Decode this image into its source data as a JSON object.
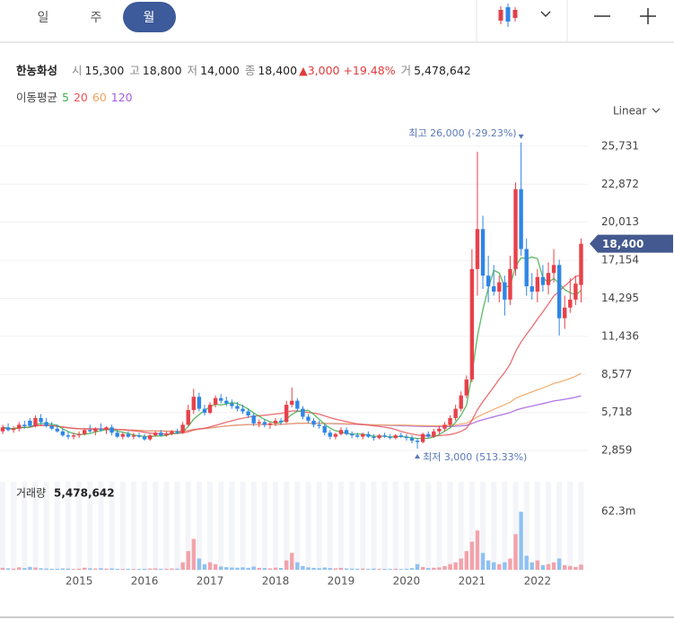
{
  "header": {
    "tabs": [
      "일",
      "주",
      "월"
    ],
    "selected_tab": 2,
    "name": "한농화성",
    "quote": [
      {
        "label": "시",
        "value": "15,300"
      },
      {
        "label": "고",
        "value": "18,800"
      },
      {
        "label": "저",
        "value": "14,000"
      },
      {
        "label": "종",
        "value": "18,400"
      }
    ],
    "change": "▲3,000 +19.48%",
    "volume": {
      "label": "거",
      "value": "5,478,642"
    },
    "scale": "Linear"
  },
  "chart_data": {
    "type": "candlestick",
    "ma": {
      "label": "이동평균",
      "periods": [
        5,
        20,
        60,
        120
      ],
      "colors": [
        "#3fae49",
        "#e8555a",
        "#f0a35c",
        "#a45ee0"
      ]
    },
    "up_color": "#e8414a",
    "down_color": "#2f86e6",
    "volume_up_color": "#f2a2aa",
    "volume_down_color": "#8fc1f2",
    "categories": [
      null,
      null,
      null,
      null,
      null,
      null,
      null,
      null,
      null,
      null,
      null,
      null,
      null,
      null,
      "2015",
      null,
      null,
      null,
      null,
      null,
      null,
      null,
      null,
      null,
      null,
      null,
      "2016",
      null,
      null,
      null,
      null,
      null,
      null,
      null,
      null,
      null,
      null,
      null,
      "2017",
      null,
      null,
      null,
      null,
      null,
      null,
      null,
      null,
      null,
      null,
      null,
      "2018",
      null,
      null,
      null,
      null,
      null,
      null,
      null,
      null,
      null,
      null,
      null,
      "2019",
      null,
      null,
      null,
      null,
      null,
      null,
      null,
      null,
      null,
      null,
      null,
      "2020",
      null,
      null,
      null,
      null,
      null,
      null,
      null,
      null,
      null,
      null,
      null,
      "2021",
      null,
      null,
      null,
      null,
      null,
      null,
      null,
      null,
      null,
      null,
      null,
      "2022",
      null,
      null,
      null,
      null,
      null,
      null,
      null,
      null
    ],
    "candles": [
      [
        4300,
        4800,
        4100,
        4600
      ],
      [
        4600,
        4900,
        4300,
        4400
      ],
      [
        4400,
        4700,
        4200,
        4500
      ],
      [
        4500,
        5000,
        4300,
        4800
      ],
      [
        4800,
        5100,
        4500,
        4700
      ],
      [
        5100,
        5300,
        4600,
        4700
      ],
      [
        4700,
        5500,
        4600,
        5300
      ],
      [
        5300,
        5600,
        4800,
        5000
      ],
      [
        5000,
        5300,
        4600,
        4700
      ],
      [
        4700,
        5000,
        4400,
        4500
      ],
      [
        4500,
        4800,
        4200,
        4300
      ],
      [
        4300,
        4500,
        3900,
        4000
      ],
      [
        4000,
        4300,
        3700,
        3900
      ],
      [
        3900,
        4200,
        3700,
        4000
      ],
      [
        4000,
        4300,
        3800,
        4100
      ],
      [
        4100,
        4500,
        4000,
        4400
      ],
      [
        4400,
        4800,
        4200,
        4300
      ],
      [
        4300,
        4600,
        4000,
        4500
      ],
      [
        4500,
        4900,
        4300,
        4400
      ],
      [
        4400,
        4700,
        4100,
        4600
      ],
      [
        4600,
        4800,
        4000,
        4200
      ],
      [
        4200,
        4400,
        3800,
        3900
      ],
      [
        3900,
        4200,
        3700,
        4100
      ],
      [
        4100,
        4300,
        3800,
        3900
      ],
      [
        3900,
        4200,
        3700,
        4000
      ],
      [
        4000,
        4200,
        3800,
        3900
      ],
      [
        3900,
        4100,
        3600,
        3700
      ],
      [
        3700,
        4100,
        3600,
        4000
      ],
      [
        4000,
        4300,
        3900,
        4200
      ],
      [
        4200,
        4400,
        3900,
        4000
      ],
      [
        4000,
        4300,
        3900,
        4100
      ],
      [
        4100,
        4400,
        4000,
        4300
      ],
      [
        4300,
        4500,
        4100,
        4200
      ],
      [
        4200,
        5000,
        4100,
        4800
      ],
      [
        4800,
        6300,
        4700,
        5900
      ],
      [
        5900,
        7500,
        5600,
        6900
      ],
      [
        6900,
        7200,
        5800,
        6000
      ],
      [
        6000,
        6300,
        5500,
        5700
      ],
      [
        5700,
        6500,
        5600,
        6300
      ],
      [
        6300,
        7000,
        6100,
        6800
      ],
      [
        6800,
        7100,
        6400,
        6600
      ],
      [
        6600,
        6900,
        6200,
        6400
      ],
      [
        6400,
        6700,
        6000,
        6200
      ],
      [
        6200,
        6500,
        5800,
        6000
      ],
      [
        6000,
        6300,
        5600,
        5800
      ],
      [
        5800,
        6000,
        5300,
        5500
      ],
      [
        5500,
        5700,
        4700,
        4900
      ],
      [
        4900,
        5200,
        4600,
        5000
      ],
      [
        5000,
        5200,
        4600,
        4800
      ],
      [
        4800,
        5000,
        4500,
        4900
      ],
      [
        4900,
        5300,
        4700,
        5100
      ],
      [
        5100,
        5300,
        4800,
        5000
      ],
      [
        5000,
        6600,
        4900,
        6300
      ],
      [
        6300,
        7600,
        6100,
        6600
      ],
      [
        6600,
        6800,
        5800,
        6000
      ],
      [
        6000,
        6200,
        5200,
        5400
      ],
      [
        5400,
        5600,
        4900,
        5100
      ],
      [
        5100,
        5300,
        4600,
        4800
      ],
      [
        4800,
        5100,
        4500,
        4700
      ],
      [
        4700,
        4900,
        4000,
        4200
      ],
      [
        4200,
        4400,
        3700,
        3900
      ],
      [
        3900,
        4200,
        3700,
        4100
      ],
      [
        4100,
        4600,
        4000,
        4400
      ],
      [
        4400,
        4600,
        4000,
        4100
      ],
      [
        4100,
        4300,
        3800,
        4000
      ],
      [
        4000,
        4200,
        3800,
        3900
      ],
      [
        3900,
        4200,
        3700,
        4100
      ],
      [
        4100,
        4300,
        3800,
        3900
      ],
      [
        3900,
        4100,
        3600,
        3800
      ],
      [
        3800,
        4100,
        3700,
        4000
      ],
      [
        4000,
        4200,
        3800,
        3900
      ],
      [
        3900,
        4100,
        3700,
        3800
      ],
      [
        3800,
        4100,
        3700,
        4000
      ],
      [
        4000,
        4200,
        3800,
        3900
      ],
      [
        3900,
        4100,
        3600,
        3800
      ],
      [
        3800,
        4000,
        3400,
        3600
      ],
      [
        3600,
        3800,
        3000,
        3500
      ],
      [
        3500,
        4200,
        3400,
        4100
      ],
      [
        4100,
        4300,
        3800,
        3900
      ],
      [
        3900,
        4500,
        3800,
        4300
      ],
      [
        4300,
        4700,
        4100,
        4500
      ],
      [
        4500,
        5000,
        4300,
        4800
      ],
      [
        4800,
        5500,
        4600,
        5300
      ],
      [
        5300,
        6300,
        5100,
        6000
      ],
      [
        6000,
        7300,
        5800,
        7000
      ],
      [
        7000,
        8500,
        6800,
        8200
      ],
      [
        8200,
        18000,
        8000,
        16500
      ],
      [
        16500,
        25300,
        14500,
        19500
      ],
      [
        19500,
        20500,
        15000,
        16000
      ],
      [
        16000,
        17500,
        14000,
        15200
      ],
      [
        15200,
        16800,
        14500,
        14800
      ],
      [
        14800,
        16000,
        14000,
        15500
      ],
      [
        15500,
        16000,
        13000,
        14200
      ],
      [
        14200,
        17500,
        13800,
        16500
      ],
      [
        16500,
        23000,
        16000,
        22500
      ],
      [
        22500,
        26000,
        17500,
        18000
      ],
      [
        18000,
        18800,
        14500,
        15200
      ],
      [
        15200,
        16200,
        14200,
        14800
      ],
      [
        14800,
        16500,
        14000,
        15900
      ],
      [
        15900,
        16800,
        14800,
        15300
      ],
      [
        15300,
        17000,
        14600,
        16200
      ],
      [
        16200,
        18000,
        15500,
        16800
      ],
      [
        16800,
        17200,
        11500,
        12800
      ],
      [
        12800,
        14500,
        12000,
        13600
      ],
      [
        13600,
        15800,
        13200,
        14200
      ],
      [
        14200,
        16000,
        13800,
        15400
      ],
      [
        15300,
        18800,
        14000,
        18400
      ]
    ],
    "volume": [
      2100000,
      1500000,
      1200000,
      2600000,
      1800000,
      3100000,
      2400000,
      1600000,
      1300000,
      1100000,
      1000000,
      1400000,
      1200000,
      900000,
      1100000,
      2200000,
      1500000,
      1300000,
      1700000,
      1200000,
      1400000,
      1000000,
      900000,
      1100000,
      800000,
      900000,
      1000000,
      1300000,
      1500000,
      1100000,
      1000000,
      1400000,
      1200000,
      8000000,
      20000000,
      33000000,
      12000000,
      6000000,
      8000000,
      6000000,
      3500000,
      2800000,
      2400000,
      2200000,
      2600000,
      2100000,
      3400000,
      2000000,
      1800000,
      1500000,
      2200000,
      1900000,
      10000000,
      18000000,
      8000000,
      4000000,
      2600000,
      2000000,
      1700000,
      2400000,
      1800000,
      1500000,
      2000000,
      1400000,
      1200000,
      1100000,
      1300000,
      1000000,
      1200000,
      1100000,
      900000,
      1000000,
      1100000,
      900000,
      1000000,
      1700000,
      6000000,
      3000000,
      1800000,
      2200000,
      2500000,
      4000000,
      6000000,
      8000000,
      12000000,
      20000000,
      30000000,
      42000000,
      18000000,
      10000000,
      8000000,
      6000000,
      8000000,
      12000000,
      38000000,
      62000000,
      15000000,
      8000000,
      10000000,
      5000000,
      6000000,
      8000000,
      12000000,
      5000000,
      4000000,
      3000000,
      5478642
    ],
    "ylim": [
      980,
      27275
    ],
    "yticks": [
      {
        "value": 2859,
        "label": "2,859"
      },
      {
        "value": 5718,
        "label": "5,718"
      },
      {
        "value": 8577,
        "label": "8,577"
      },
      {
        "value": 11436,
        "label": "11,436"
      },
      {
        "value": 14295,
        "label": "14,295"
      },
      {
        "value": 17154,
        "label": "17,154"
      },
      {
        "value": 20013,
        "label": "20,013"
      },
      {
        "value": 22872,
        "label": "22,872"
      },
      {
        "value": 25731,
        "label": "25,731"
      }
    ],
    "volume_ylim": [
      0,
      94000000
    ],
    "volume_yticks": [
      {
        "value": 62300000,
        "label": "62.3m"
      }
    ],
    "volume_title": "거래량",
    "volume_value_label": "5,478,642",
    "price_tag": {
      "value": 18400,
      "label": "18,400"
    },
    "annotations": [
      {
        "text": "최고 26,000 (-29.23%)",
        "value": 26000,
        "at": 95,
        "kind": "max"
      },
      {
        "text": "최저 3,000 (513.33%)",
        "value": 3000,
        "at": 76,
        "kind": "min"
      }
    ],
    "grid": true
  }
}
